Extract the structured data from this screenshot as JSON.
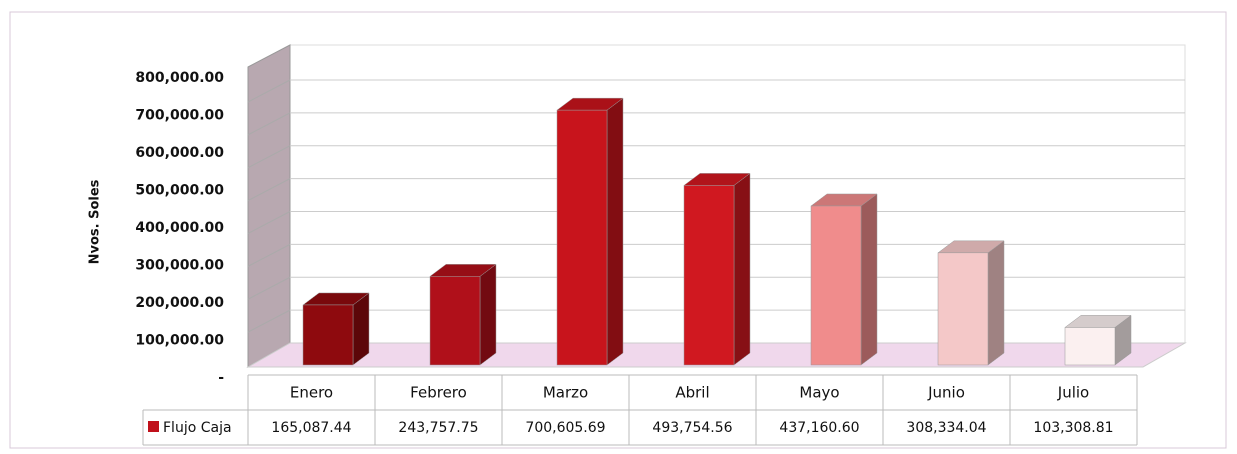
{
  "chart_data": {
    "type": "bar3d",
    "y_axis_label": "Nvos. Soles",
    "categories": [
      "Enero",
      "Febrero",
      "Marzo",
      "Abril",
      "Mayo",
      "Junio",
      "Julio"
    ],
    "series": [
      {
        "name": "Flujo Caja",
        "color": "#c0101a",
        "values": [
          165087.44,
          243757.75,
          700605.69,
          493754.56,
          437160.6,
          308334.04,
          103308.81
        ],
        "value_labels": [
          "165,087.44",
          "243,757.75",
          "700,605.69",
          "493,754.56",
          "437,160.60",
          "308,334.04",
          "103,308.81"
        ],
        "colors": [
          "#8e0a0e",
          "#b0101a",
          "#c8141c",
          "#d01820",
          "#f08c8c",
          "#f4c8c8",
          "#fbf0f0"
        ]
      }
    ],
    "ylim": [
      0,
      800000
    ],
    "yticks": [
      {
        "value": 0,
        "label": "-"
      },
      {
        "value": 100000,
        "label": "100,000.00"
      },
      {
        "value": 200000,
        "label": "200,000.00"
      },
      {
        "value": 300000,
        "label": "300,000.00"
      },
      {
        "value": 400000,
        "label": "400,000.00"
      },
      {
        "value": 500000,
        "label": "500,000.00"
      },
      {
        "value": 600000,
        "label": "600,000.00"
      },
      {
        "value": 700000,
        "label": "700,000.00"
      },
      {
        "value": 800000,
        "label": "800,000.00"
      }
    ],
    "grid": true
  }
}
